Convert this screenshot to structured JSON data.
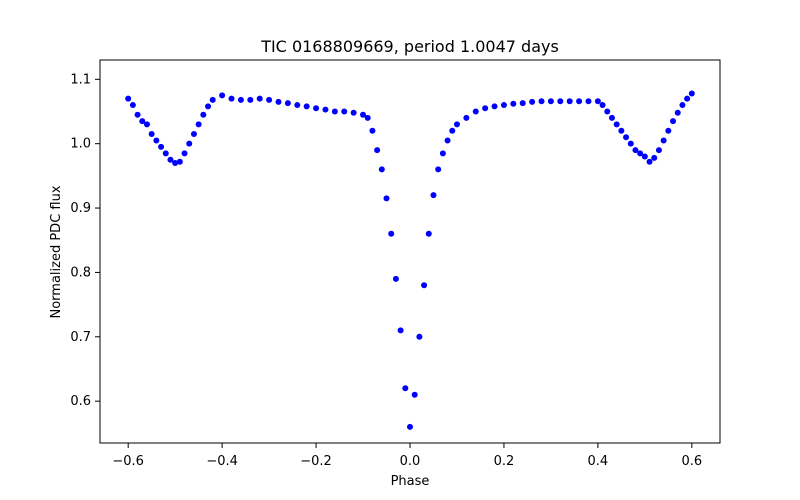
{
  "chart_data": {
    "type": "scatter",
    "title": "TIC 0168809669, period 1.0047 days",
    "xlabel": "Phase",
    "ylabel": "Normalized PDC flux",
    "xlim": [
      -0.66,
      0.66
    ],
    "ylim": [
      0.535,
      1.13
    ],
    "xticks": [
      -0.6,
      -0.4,
      -0.2,
      0.0,
      0.2,
      0.4,
      0.6
    ],
    "xtick_labels": [
      "−0.6",
      "−0.4",
      "−0.2",
      "0.0",
      "0.2",
      "0.4",
      "0.6"
    ],
    "yticks": [
      0.6,
      0.7,
      0.8,
      0.9,
      1.0,
      1.1
    ],
    "ytick_labels": [
      "0.6",
      "0.7",
      "0.8",
      "0.9",
      "1.0",
      "1.1"
    ],
    "grid": false,
    "legend": "none",
    "marker_color": "#0000ff",
    "series": [
      {
        "values": [
          [
            -0.6,
            1.07
          ],
          [
            -0.59,
            1.06
          ],
          [
            -0.58,
            1.045
          ],
          [
            -0.57,
            1.035
          ],
          [
            -0.56,
            1.03
          ],
          [
            -0.55,
            1.015
          ],
          [
            -0.54,
            1.005
          ],
          [
            -0.53,
            0.995
          ],
          [
            -0.52,
            0.985
          ],
          [
            -0.51,
            0.975
          ],
          [
            -0.5,
            0.97
          ],
          [
            -0.49,
            0.972
          ],
          [
            -0.48,
            0.985
          ],
          [
            -0.47,
            1.0
          ],
          [
            -0.46,
            1.015
          ],
          [
            -0.45,
            1.03
          ],
          [
            -0.44,
            1.045
          ],
          [
            -0.43,
            1.058
          ],
          [
            -0.42,
            1.068
          ],
          [
            -0.4,
            1.075
          ],
          [
            -0.38,
            1.07
          ],
          [
            -0.36,
            1.068
          ],
          [
            -0.34,
            1.068
          ],
          [
            -0.32,
            1.07
          ],
          [
            -0.3,
            1.068
          ],
          [
            -0.28,
            1.065
          ],
          [
            -0.26,
            1.063
          ],
          [
            -0.24,
            1.06
          ],
          [
            -0.22,
            1.058
          ],
          [
            -0.2,
            1.055
          ],
          [
            -0.18,
            1.053
          ],
          [
            -0.16,
            1.05
          ],
          [
            -0.14,
            1.05
          ],
          [
            -0.12,
            1.048
          ],
          [
            -0.1,
            1.045
          ],
          [
            -0.09,
            1.04
          ],
          [
            -0.08,
            1.02
          ],
          [
            -0.07,
            0.99
          ],
          [
            -0.06,
            0.96
          ],
          [
            -0.05,
            0.915
          ],
          [
            -0.04,
            0.86
          ],
          [
            -0.03,
            0.79
          ],
          [
            -0.02,
            0.71
          ],
          [
            -0.01,
            0.62
          ],
          [
            0.0,
            0.56
          ],
          [
            0.01,
            0.61
          ],
          [
            0.02,
            0.7
          ],
          [
            0.03,
            0.78
          ],
          [
            0.04,
            0.86
          ],
          [
            0.05,
            0.92
          ],
          [
            0.06,
            0.96
          ],
          [
            0.07,
            0.985
          ],
          [
            0.08,
            1.005
          ],
          [
            0.09,
            1.02
          ],
          [
            0.1,
            1.03
          ],
          [
            0.12,
            1.04
          ],
          [
            0.14,
            1.05
          ],
          [
            0.16,
            1.055
          ],
          [
            0.18,
            1.058
          ],
          [
            0.2,
            1.06
          ],
          [
            0.22,
            1.062
          ],
          [
            0.24,
            1.063
          ],
          [
            0.26,
            1.065
          ],
          [
            0.28,
            1.066
          ],
          [
            0.3,
            1.066
          ],
          [
            0.32,
            1.066
          ],
          [
            0.34,
            1.066
          ],
          [
            0.36,
            1.066
          ],
          [
            0.38,
            1.066
          ],
          [
            0.4,
            1.066
          ],
          [
            0.41,
            1.06
          ],
          [
            0.42,
            1.05
          ],
          [
            0.43,
            1.04
          ],
          [
            0.44,
            1.03
          ],
          [
            0.45,
            1.02
          ],
          [
            0.46,
            1.01
          ],
          [
            0.47,
            1.0
          ],
          [
            0.48,
            0.99
          ],
          [
            0.49,
            0.985
          ],
          [
            0.5,
            0.98
          ],
          [
            0.51,
            0.972
          ],
          [
            0.52,
            0.978
          ],
          [
            0.53,
            0.99
          ],
          [
            0.54,
            1.005
          ],
          [
            0.55,
            1.02
          ],
          [
            0.56,
            1.035
          ],
          [
            0.57,
            1.048
          ],
          [
            0.58,
            1.06
          ],
          [
            0.59,
            1.07
          ],
          [
            0.6,
            1.078
          ]
        ]
      }
    ]
  }
}
